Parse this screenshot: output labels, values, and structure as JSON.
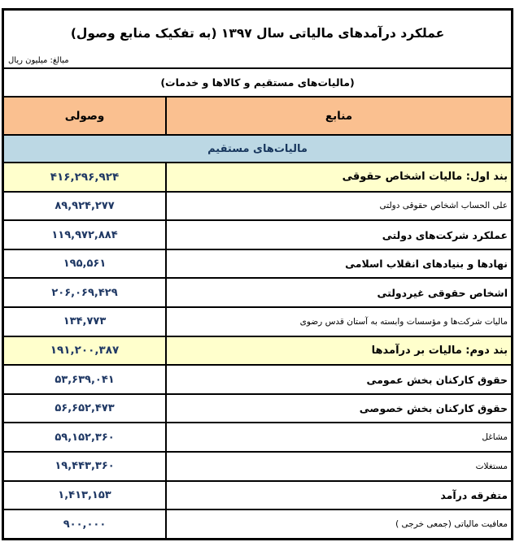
{
  "report": {
    "title": "عملکرد درآمدهای مالیاتی سال ۱۳۹۷ (به تفکیک منابع وصول)",
    "unit_note": "مبالغ: میلیون ریال",
    "subtitle": "(مالیات‌های مستقیم و کالاها و خدمات)"
  },
  "table": {
    "column_headers": {
      "collected": "وصولی",
      "sources": "منابع"
    },
    "section_header": "مالیات‌های مستقیم",
    "rows": [
      {
        "label": "بند اول: مالیات اشخاص حقوقی",
        "value": "۴۱۶,۲۹۶,۹۲۴"
      },
      {
        "label": "علی الحساب اشخاص حقوقی دولتی",
        "value": "۸۹,۹۲۴,۲۷۷"
      },
      {
        "label": "عملکرد شرکت‌های دولتی",
        "value": "۱۱۹,۹۷۲,۸۸۴"
      },
      {
        "label": "نهادها و بنیادهای انقلاب اسلامی",
        "value": "۱۹۵,۵۶۱"
      },
      {
        "label": "اشخاص حقوقی غیردولتی",
        "value": "۲۰۶,۰۶۹,۴۲۹"
      },
      {
        "label": "مالیات شرکت‌ها و مؤسسات وابسته به آستان قدس رضوی",
        "value": "۱۳۴,۷۷۳"
      },
      {
        "label": "بند دوم: مالیات بر درآمدها",
        "value": "۱۹۱,۲۰۰,۳۸۷"
      },
      {
        "label": "حقوق کارکنان بخش عمومی",
        "value": "۵۳,۶۳۹,۰۴۱"
      },
      {
        "label": "حقوق کارکنان بخش خصوصی",
        "value": "۵۶,۶۵۲,۴۷۳"
      },
      {
        "label": "مشاغل",
        "value": "۵۹,۱۵۲,۳۶۰"
      },
      {
        "label": "مستغلات",
        "value": "۱۹,۴۴۳,۳۶۰"
      },
      {
        "label": "متفرقه درآمد",
        "value": "۱,۴۱۳,۱۵۳"
      },
      {
        "label": "معافیت مالیاتی (جمعی خرجی )",
        "value": "۹۰۰,۰۰۰"
      }
    ]
  },
  "colors": {
    "header_bg": "#FAC090",
    "section_bg": "#BCD8E4",
    "band_bg": "#FFFFCC",
    "number_text": "#1F3864",
    "border": "#000000"
  }
}
